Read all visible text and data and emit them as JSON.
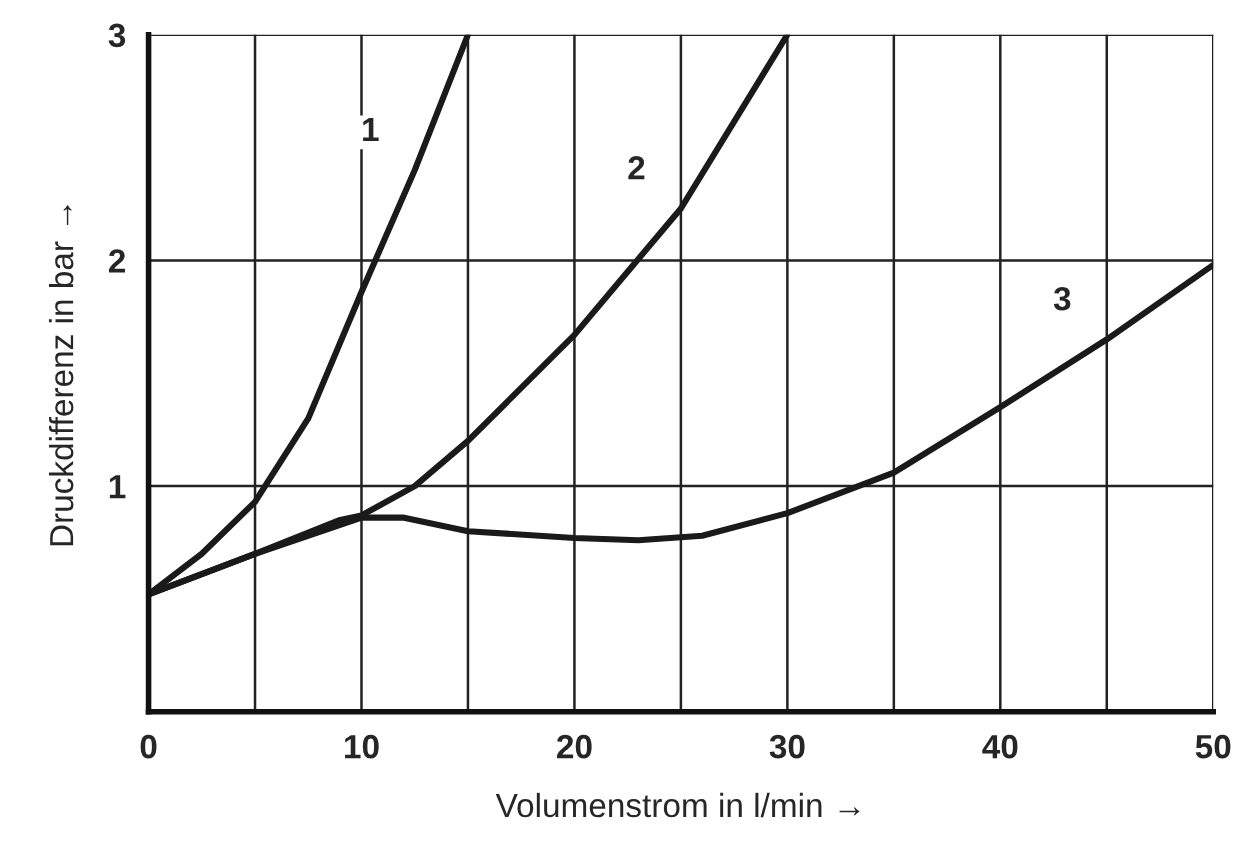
{
  "chart_data": {
    "type": "line",
    "xlabel": "Volumenstrom in l/min →",
    "ylabel": "Druckdifferenz in bar →",
    "xlim": [
      0,
      50
    ],
    "ylim": [
      0,
      3
    ],
    "xticks": [
      0,
      10,
      20,
      30,
      40,
      50
    ],
    "yticks": [
      1,
      2,
      3
    ],
    "grid": true,
    "legend": false,
    "marker": "none",
    "line_style": "solid",
    "series": [
      {
        "name": "1",
        "color": "#1a1a1a",
        "x": [
          0,
          2.5,
          5,
          7.5,
          10,
          12.5,
          15
        ],
        "values": [
          0.52,
          0.7,
          0.93,
          1.3,
          1.86,
          2.4,
          3.0
        ]
      },
      {
        "name": "2",
        "color": "#1a1a1a",
        "x": [
          0,
          5,
          9,
          10,
          12.5,
          15,
          20,
          25,
          30
        ],
        "values": [
          0.52,
          0.7,
          0.85,
          0.87,
          1.0,
          1.2,
          1.67,
          2.23,
          3.0
        ]
      },
      {
        "name": "3",
        "color": "#1a1a1a",
        "x": [
          0,
          5,
          10,
          12,
          15,
          20,
          23,
          26,
          30,
          35,
          40,
          45,
          50
        ],
        "values": [
          0.52,
          0.7,
          0.86,
          0.86,
          0.8,
          0.77,
          0.76,
          0.78,
          0.88,
          1.06,
          1.35,
          1.65,
          1.98
        ]
      }
    ]
  }
}
